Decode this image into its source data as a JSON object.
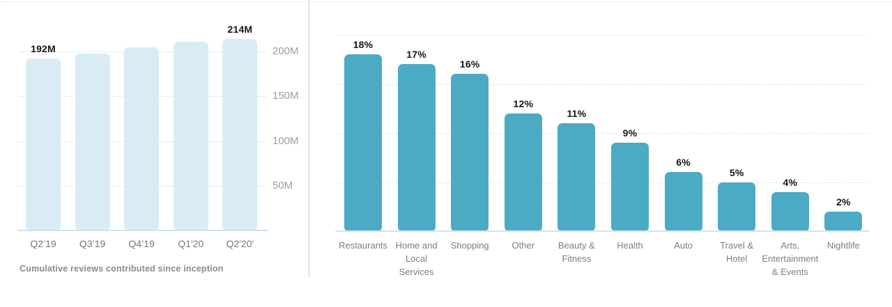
{
  "colors": {
    "left_bar": "#d9ecf6",
    "right_bar": "#4cabc4",
    "baseline": "#cfe3f0",
    "gridline": "#e2e2e2",
    "divider": "#c9c9c9",
    "ytick_text": "#9c9c9c",
    "xtick_text": "#787878",
    "value_text": "#151515",
    "caption_text": "#8a8a8a"
  },
  "chart_data": [
    {
      "type": "bar",
      "title": "",
      "caption": "Cumulative reviews contributed since inception",
      "categories": [
        "Q2’19",
        "Q3’19",
        "Q4’19",
        "Q1'20",
        "Q2'20'"
      ],
      "values": [
        192,
        198,
        205,
        211,
        214
      ],
      "unit": "M",
      "value_labels": [
        "192M",
        null,
        null,
        null,
        "214M"
      ],
      "xlabel": "",
      "ylabel": "",
      "ylim": [
        0,
        230
      ],
      "yticks": [
        50,
        100,
        150,
        200
      ],
      "ytick_labels": [
        "50M",
        "100M",
        "150M",
        "200M"
      ],
      "ytick_side": "right",
      "grid": true,
      "legend": false,
      "bar_color": "#d9ecf6"
    },
    {
      "type": "bar",
      "title": "",
      "categories": [
        "Restaurants",
        "Home and Local Services",
        "Shopping",
        "Other",
        "Beauty & Fitness",
        "Health",
        "Auto",
        "Travel & Hotel",
        "Arts, Entertainment & Events",
        "Nightlife"
      ],
      "category_lines": [
        [
          "Restaurants"
        ],
        [
          "Home and",
          "Local",
          "Services"
        ],
        [
          "Shopping"
        ],
        [
          "Other"
        ],
        [
          "Beauty &",
          "Fitness"
        ],
        [
          "Health"
        ],
        [
          "Auto"
        ],
        [
          "Travel &",
          "Hotel"
        ],
        [
          "Arts,",
          "Entertainment",
          "& Events"
        ],
        [
          "Nightlife"
        ]
      ],
      "values": [
        18,
        17,
        16,
        12,
        11,
        9,
        6,
        5,
        4,
        2
      ],
      "unit": "%",
      "value_labels": [
        "18%",
        "17%",
        "16%",
        "12%",
        "11%",
        "9%",
        "6%",
        "5%",
        "4%",
        "2%"
      ],
      "xlabel": "",
      "ylabel": "",
      "ylim": [
        0,
        20
      ],
      "yticks": [
        5,
        10,
        15,
        20
      ],
      "ytick_labels": [],
      "grid": true,
      "legend": false,
      "bar_color": "#4cabc4"
    }
  ]
}
